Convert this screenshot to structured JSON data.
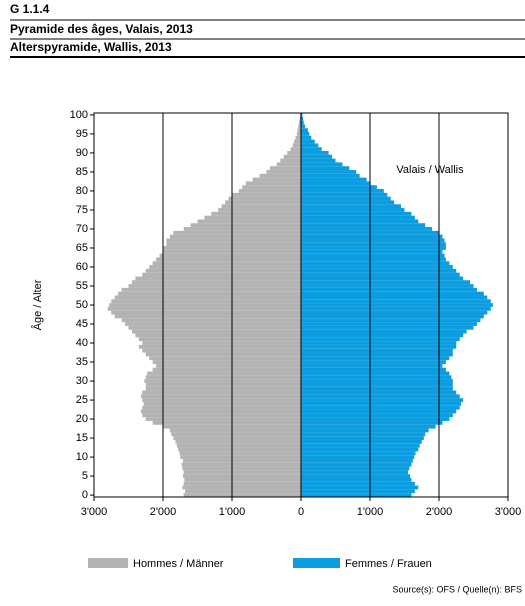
{
  "chart_data": {
    "type": "pyramid",
    "code": "G 1.1.4",
    "title": "Pyramide des âges, Valais, 2013",
    "subtitle": "Alterspyramide, Wallis, 2013",
    "annotation": "Valais / Wallis",
    "ylabel": "Âge / Alter",
    "source": "Source(s): OFS / Quelle(n): BFS",
    "categories": [
      0,
      1,
      2,
      3,
      4,
      5,
      6,
      7,
      8,
      9,
      10,
      11,
      12,
      13,
      14,
      15,
      16,
      17,
      18,
      19,
      20,
      21,
      22,
      23,
      24,
      25,
      26,
      27,
      28,
      29,
      30,
      31,
      32,
      33,
      34,
      35,
      36,
      37,
      38,
      39,
      40,
      41,
      42,
      43,
      44,
      45,
      46,
      47,
      48,
      49,
      50,
      51,
      52,
      53,
      54,
      55,
      56,
      57,
      58,
      59,
      60,
      61,
      62,
      63,
      64,
      65,
      66,
      67,
      68,
      69,
      70,
      71,
      72,
      73,
      74,
      75,
      76,
      77,
      78,
      79,
      80,
      81,
      82,
      83,
      84,
      85,
      86,
      87,
      88,
      89,
      90,
      91,
      92,
      93,
      94,
      95,
      96,
      97,
      98,
      99,
      100
    ],
    "series": [
      {
        "name": "Hommes / Männer",
        "color": "#b3b3b3",
        "side": "left",
        "values": [
          1700,
          1680,
          1720,
          1700,
          1690,
          1710,
          1700,
          1720,
          1730,
          1710,
          1750,
          1760,
          1780,
          1800,
          1820,
          1850,
          1880,
          1900,
          2000,
          2150,
          2250,
          2300,
          2320,
          2300,
          2280,
          2300,
          2320,
          2300,
          2250,
          2250,
          2270,
          2250,
          2230,
          2150,
          2100,
          2150,
          2200,
          2250,
          2300,
          2350,
          2300,
          2350,
          2400,
          2450,
          2500,
          2550,
          2600,
          2700,
          2750,
          2800,
          2780,
          2750,
          2700,
          2650,
          2600,
          2500,
          2450,
          2400,
          2300,
          2250,
          2200,
          2150,
          2100,
          2050,
          2000,
          2000,
          1950,
          1950,
          1900,
          1850,
          1700,
          1600,
          1500,
          1400,
          1300,
          1200,
          1150,
          1100,
          1050,
          1000,
          900,
          850,
          800,
          700,
          600,
          500,
          450,
          350,
          300,
          250,
          200,
          150,
          120,
          100,
          80,
          60,
          50,
          40,
          30,
          20,
          10
        ]
      },
      {
        "name": "Femmes / Frauen",
        "color": "#0b9de0",
        "side": "right",
        "values": [
          1600,
          1650,
          1700,
          1650,
          1600,
          1580,
          1550,
          1570,
          1600,
          1620,
          1640,
          1660,
          1700,
          1720,
          1750,
          1780,
          1800,
          1850,
          1950,
          2050,
          2150,
          2200,
          2250,
          2300,
          2320,
          2350,
          2300,
          2250,
          2200,
          2200,
          2200,
          2180,
          2150,
          2100,
          2050,
          2100,
          2150,
          2200,
          2200,
          2250,
          2250,
          2300,
          2350,
          2400,
          2500,
          2550,
          2600,
          2650,
          2700,
          2750,
          2780,
          2750,
          2700,
          2650,
          2550,
          2500,
          2450,
          2350,
          2300,
          2250,
          2200,
          2150,
          2100,
          2080,
          2050,
          2100,
          2100,
          2080,
          2050,
          2000,
          1900,
          1800,
          1700,
          1650,
          1600,
          1500,
          1450,
          1350,
          1300,
          1250,
          1200,
          1100,
          1000,
          950,
          850,
          800,
          700,
          600,
          500,
          450,
          400,
          300,
          250,
          200,
          150,
          120,
          100,
          60,
          40,
          30,
          20
        ]
      }
    ],
    "xlim": [
      -3000,
      3000
    ],
    "xticks": [
      {
        "value": -3000,
        "label": "3'000"
      },
      {
        "value": -2000,
        "label": "2'000"
      },
      {
        "value": -1000,
        "label": "1'000"
      },
      0,
      {
        "value": 1000,
        "label": "1'000"
      },
      {
        "value": 2000,
        "label": "2'000"
      },
      {
        "value": 3000,
        "label": "3'000"
      }
    ],
    "ylim": [
      -0.5,
      100.5
    ],
    "yticks": [
      0,
      5,
      10,
      15,
      20,
      25,
      30,
      35,
      40,
      45,
      50,
      55,
      60,
      65,
      70,
      75,
      80,
      85,
      90,
      95,
      100
    ],
    "grid": true
  }
}
